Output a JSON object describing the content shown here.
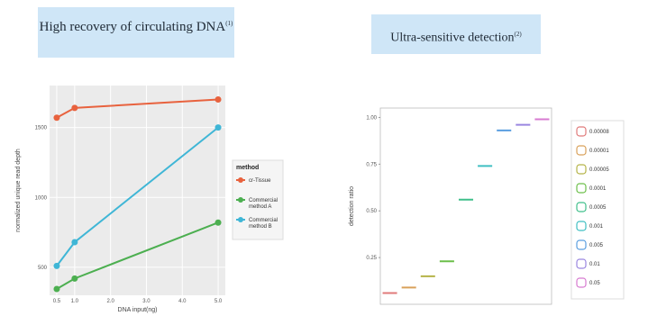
{
  "titles": {
    "left": "High recovery of circulating DNA",
    "left_sup": "(1)",
    "right": "Ultra-sensitive detection",
    "right_sup": "(2)"
  },
  "chart_data": [
    {
      "type": "line",
      "xlabel": "DNA input(ng)",
      "ylabel": "normalized unique read depth",
      "x_ticks": [
        0.5,
        1.0,
        2.0,
        3.0,
        4.0,
        5.0
      ],
      "x_tick_labels": [
        "0.5",
        "1.0",
        "2.0",
        "3.0",
        "4.0",
        "5.0"
      ],
      "y_ticks": [
        500,
        1000,
        1500
      ],
      "y_tick_labels": [
        "500",
        "1000",
        "1500"
      ],
      "xlim": [
        0.3,
        5.2
      ],
      "ylim": [
        300,
        1800
      ],
      "grid": true,
      "legend_title": "method",
      "legend_position": "right",
      "series": [
        {
          "name": "cr-Tissue",
          "color": "#e8623e",
          "x": [
            0.5,
            1.0,
            5.0
          ],
          "y": [
            1570,
            1640,
            1700
          ]
        },
        {
          "name": "Commercial method A",
          "color": "#4caf50",
          "x": [
            0.5,
            1.0,
            5.0
          ],
          "y": [
            345,
            420,
            820
          ]
        },
        {
          "name": "Commercial method B",
          "color": "#3fb6d6",
          "x": [
            0.5,
            1.0,
            5.0
          ],
          "y": [
            510,
            680,
            1500
          ]
        }
      ]
    },
    {
      "type": "box",
      "ylabel": "detection ratio",
      "y_ticks": [
        0.25,
        0.5,
        0.75,
        1.0
      ],
      "y_tick_labels": [
        "0.25",
        "0.50",
        "0.75",
        "1.00"
      ],
      "ylim": [
        0,
        1.05
      ],
      "grid": false,
      "legend_position": "right",
      "groups": [
        {
          "name": "0.00008",
          "value": 0.06,
          "color": "#e07a7a"
        },
        {
          "name": "0.00001",
          "value": 0.09,
          "color": "#d9a15a"
        },
        {
          "name": "0.00005",
          "value": 0.15,
          "color": "#b5b347"
        },
        {
          "name": "0.0001",
          "value": 0.23,
          "color": "#6cbf4a"
        },
        {
          "name": "0.0005",
          "value": 0.56,
          "color": "#3fbf8a"
        },
        {
          "name": "0.001",
          "value": 0.74,
          "color": "#3fbfc2"
        },
        {
          "name": "0.005",
          "value": 0.93,
          "color": "#5a9ee0"
        },
        {
          "name": "0.01",
          "value": 0.96,
          "color": "#9a86e0"
        },
        {
          "name": "0.05",
          "value": 0.99,
          "color": "#d77ad0"
        }
      ]
    }
  ]
}
